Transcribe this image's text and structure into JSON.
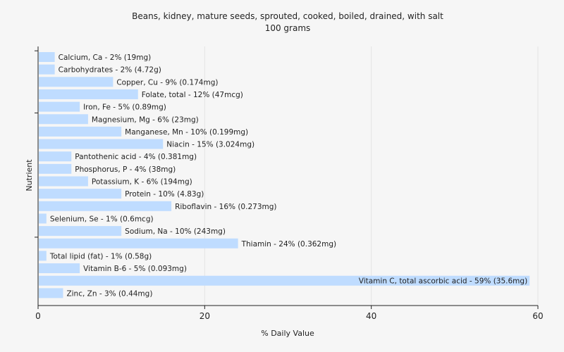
{
  "chart_data": {
    "type": "bar",
    "orientation": "horizontal",
    "title": "Beans, kidney, mature seeds, sprouted, cooked, boiled, drained, with salt",
    "subtitle": "100 grams",
    "xlabel": "% Daily Value",
    "ylabel": "Nutrient",
    "xlim": [
      0,
      60
    ],
    "xticks": [
      0,
      20,
      40,
      60
    ],
    "grid": true,
    "categories": [
      "Calcium, Ca",
      "Carbohydrates",
      "Copper, Cu",
      "Folate, total",
      "Iron, Fe",
      "Magnesium, Mg",
      "Manganese, Mn",
      "Niacin",
      "Pantothenic acid",
      "Phosphorus, P",
      "Potassium, K",
      "Protein",
      "Riboflavin",
      "Selenium, Se",
      "Sodium, Na",
      "Thiamin",
      "Total lipid (fat)",
      "Vitamin B-6",
      "Vitamin C, total ascorbic acid",
      "Zinc, Zn"
    ],
    "values": [
      2,
      2,
      9,
      12,
      5,
      6,
      10,
      15,
      4,
      4,
      6,
      10,
      16,
      1,
      10,
      24,
      1,
      5,
      59,
      3
    ],
    "labels": [
      "Calcium, Ca - 2% (19mg)",
      "Carbohydrates - 2% (4.72g)",
      "Copper, Cu - 9% (0.174mg)",
      "Folate, total - 12% (47mcg)",
      "Iron, Fe - 5% (0.89mg)",
      "Magnesium, Mg - 6% (23mg)",
      "Manganese, Mn - 10% (0.199mg)",
      "Niacin - 15% (3.024mg)",
      "Pantothenic acid - 4% (0.381mg)",
      "Phosphorus, P - 4% (38mg)",
      "Potassium, K - 6% (194mg)",
      "Protein - 10% (4.83g)",
      "Riboflavin - 16% (0.273mg)",
      "Selenium, Se - 1% (0.6mcg)",
      "Sodium, Na - 10% (243mg)",
      "Thiamin - 24% (0.362mg)",
      "Total lipid (fat) - 1% (0.58g)",
      "Vitamin B-6 - 5% (0.093mg)",
      "Vitamin C, total ascorbic acid - 59% (35.6mg)",
      "Zinc, Zn - 3% (0.44mg)"
    ],
    "colors": {
      "bar": "#bfdcff",
      "background": "#f6f6f6",
      "grid": "#e4e4e4",
      "axis": "#222222"
    }
  }
}
